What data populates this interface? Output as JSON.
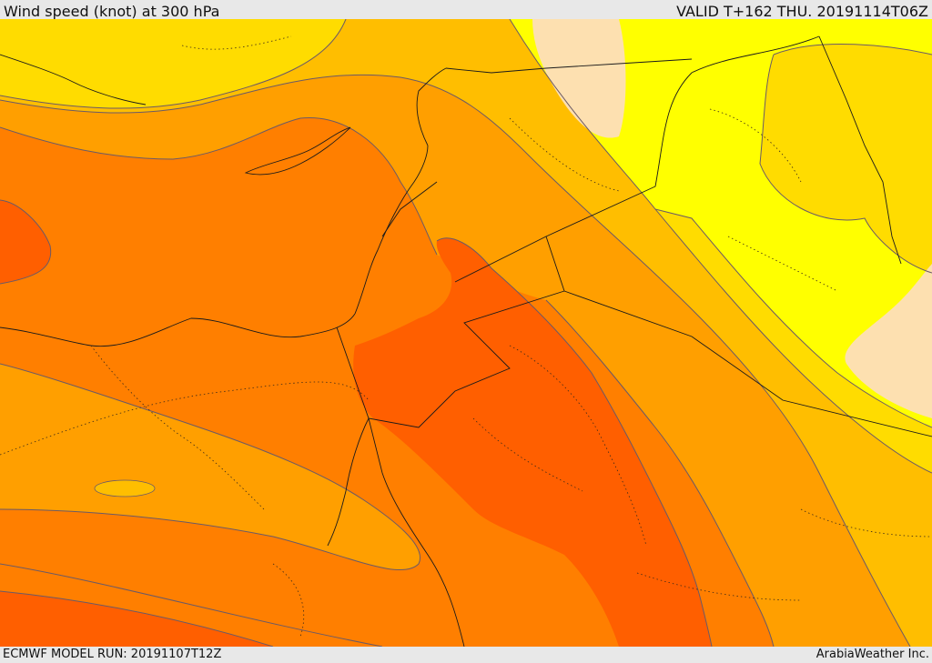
{
  "header": {
    "title": "Wind speed (knot) at 300 hPa",
    "valid": "VALID T+162 THU. 20191114T06Z"
  },
  "footer": {
    "model_run": "ECMWF MODEL RUN: 20191107T12Z",
    "credit": "ArabiaWeather Inc."
  },
  "map": {
    "fill_colors": {
      "lightest": "#fde0b0",
      "yellow": "#ffff00",
      "gold": "#ffdc00",
      "amber": "#ffbe00",
      "light_orange": "#ff9f00",
      "orange": "#ff7f00",
      "deep_orange": "#ff5f00"
    },
    "contour_color": "#6b5a66",
    "border_color": "#1a1a1a"
  }
}
